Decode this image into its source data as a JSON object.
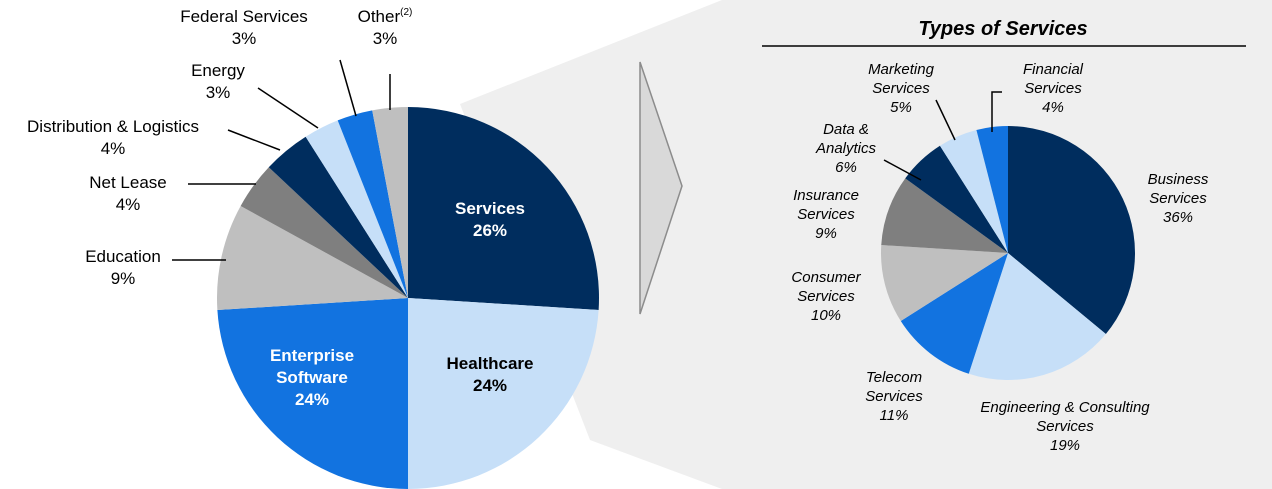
{
  "chart_data": [
    {
      "type": "pie",
      "categories": [
        "Services",
        "Healthcare",
        "Enterprise Software",
        "Education",
        "Net Lease",
        "Distribution & Logistics",
        "Energy",
        "Federal Services",
        "Other"
      ],
      "category_superscripts": [
        null,
        null,
        null,
        null,
        null,
        null,
        null,
        null,
        "(2)"
      ],
      "values": [
        26,
        24,
        24,
        9,
        4,
        4,
        3,
        3,
        3
      ],
      "value_labels": [
        "26%",
        "24%",
        "24%",
        "9%",
        "4%",
        "4%",
        "3%",
        "3%",
        "3%"
      ],
      "colors": [
        "#002d5e",
        "#c6dff8",
        "#1273e0",
        "#bfbfbf",
        "#7f7f7f",
        "#002d5e",
        "#c6dff8",
        "#1273e0",
        "#bfbfbf"
      ]
    },
    {
      "type": "pie",
      "title": "Types of Services",
      "categories": [
        "Business Services",
        "Engineering & Consulting Services",
        "Telecom Services",
        "Consumer Services",
        "Insurance Services",
        "Data & Analytics",
        "Marketing Services",
        "Financial Services"
      ],
      "values": [
        36,
        19,
        11,
        10,
        9,
        6,
        5,
        4
      ],
      "value_labels": [
        "36%",
        "19%",
        "11%",
        "10%",
        "9%",
        "6%",
        "5%",
        "4%"
      ],
      "colors": [
        "#002d5e",
        "#c6dff8",
        "#1273e0",
        "#bfbfbf",
        "#7f7f7f",
        "#002d5e",
        "#c6dff8",
        "#1273e0"
      ]
    }
  ]
}
